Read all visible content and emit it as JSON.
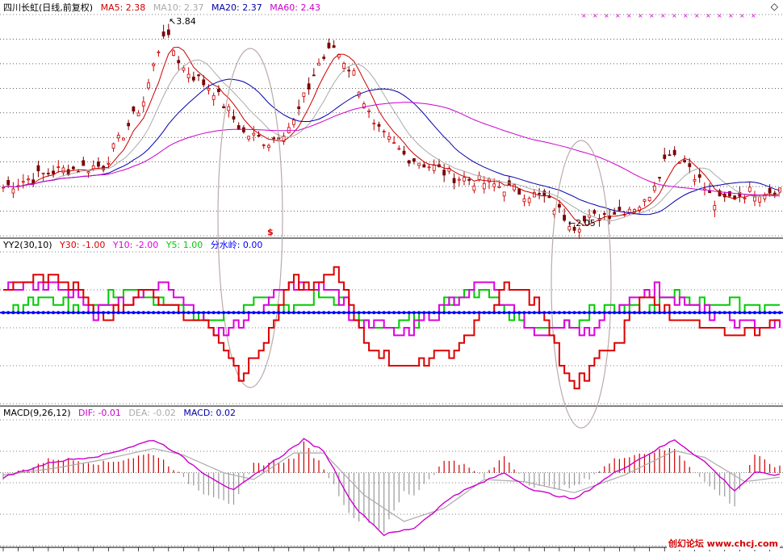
{
  "stock_title": "四川长虹(日线,前复权)",
  "main_panel": {
    "indicators": [
      {
        "label": "MA5: 2.38",
        "color": "#cc0000"
      },
      {
        "label": "MA10: 2.37",
        "color": "#aaaaaa"
      },
      {
        "label": "MA20: 2.37",
        "color": "#0000aa"
      },
      {
        "label": "MA60: 2.43",
        "color": "#cc00cc"
      }
    ],
    "high_annotation": "3.84",
    "low_annotation": "2.05",
    "signal_marker": "$",
    "corner_icon": "diamond-icon"
  },
  "yy2_panel": {
    "title": "YY2(30,10)",
    "indicators": [
      {
        "label": "Y30: -1.00",
        "color": "#dd0000"
      },
      {
        "label": "Y10: -2.00",
        "color": "#dd00dd"
      },
      {
        "label": "Y5: 1.00",
        "color": "#00cc00"
      },
      {
        "label": "分水岭: 0.00",
        "color": "#0000ff"
      }
    ]
  },
  "macd_panel": {
    "title": "MACD(9,26,12)",
    "indicators": [
      {
        "label": "DIF: -0.01",
        "color": "#cc00cc"
      },
      {
        "label": "DEA: -0.02",
        "color": "#aaaaaa"
      },
      {
        "label": "MACD: 0.02",
        "color": "#0000aa"
      }
    ]
  },
  "watermark": "创幻论坛 www.chcj.com",
  "chart_data": {
    "type": "line",
    "price_keypoints": [
      [
        0,
        2.4
      ],
      [
        10,
        2.55
      ],
      [
        20,
        2.6
      ],
      [
        28,
        3.2
      ],
      [
        32,
        3.84
      ],
      [
        36,
        3.5
      ],
      [
        42,
        3.3
      ],
      [
        48,
        2.9
      ],
      [
        53,
        2.82
      ],
      [
        58,
        3.0
      ],
      [
        63,
        3.55
      ],
      [
        66,
        3.7
      ],
      [
        70,
        3.45
      ],
      [
        74,
        2.95
      ],
      [
        80,
        2.7
      ],
      [
        90,
        2.5
      ],
      [
        100,
        2.4
      ],
      [
        108,
        2.3
      ],
      [
        114,
        2.05
      ],
      [
        120,
        2.15
      ],
      [
        128,
        2.25
      ],
      [
        133,
        2.75
      ],
      [
        137,
        2.6
      ],
      [
        142,
        2.25
      ],
      [
        148,
        2.35
      ],
      [
        155,
        2.38
      ]
    ],
    "price_range": [
      1.95,
      4.0
    ],
    "yy2_keypoints": {
      "Y30": [
        [
          0,
          3
        ],
        [
          9,
          5
        ],
        [
          14,
          3
        ],
        [
          20,
          -1
        ],
        [
          28,
          3
        ],
        [
          36,
          0
        ],
        [
          42,
          -2
        ],
        [
          47,
          -8
        ],
        [
          52,
          -4
        ],
        [
          57,
          4
        ],
        [
          62,
          3
        ],
        [
          66,
          6
        ],
        [
          70,
          -1
        ],
        [
          74,
          -5
        ],
        [
          80,
          -7
        ],
        [
          90,
          -5
        ],
        [
          100,
          3
        ],
        [
          106,
          2
        ],
        [
          110,
          -5
        ],
        [
          114,
          -10
        ],
        [
          118,
          -6
        ],
        [
          122,
          -4
        ],
        [
          128,
          3
        ],
        [
          133,
          -1
        ],
        [
          140,
          -2
        ],
        [
          145,
          -3
        ],
        [
          155,
          -1
        ]
      ],
      "Y10": [
        [
          0,
          3
        ],
        [
          10,
          4
        ],
        [
          18,
          0
        ],
        [
          26,
          2
        ],
        [
          32,
          4
        ],
        [
          36,
          1
        ],
        [
          42,
          -3
        ],
        [
          48,
          -1
        ],
        [
          55,
          3
        ],
        [
          60,
          4
        ],
        [
          66,
          3
        ],
        [
          70,
          -1
        ],
        [
          75,
          -2
        ],
        [
          80,
          -3
        ],
        [
          90,
          2
        ],
        [
          96,
          4
        ],
        [
          100,
          1
        ],
        [
          106,
          -3
        ],
        [
          110,
          -2
        ],
        [
          118,
          -2
        ],
        [
          124,
          2
        ],
        [
          130,
          3
        ],
        [
          136,
          1
        ],
        [
          140,
          0
        ],
        [
          146,
          -1
        ],
        [
          155,
          -2
        ]
      ],
      "Y5": [
        [
          0,
          0
        ],
        [
          8,
          2
        ],
        [
          16,
          0
        ],
        [
          24,
          3
        ],
        [
          32,
          1
        ],
        [
          36,
          0
        ],
        [
          42,
          -1
        ],
        [
          50,
          2
        ],
        [
          56,
          0
        ],
        [
          62,
          2
        ],
        [
          68,
          1
        ],
        [
          74,
          -2
        ],
        [
          82,
          -1
        ],
        [
          90,
          2
        ],
        [
          96,
          3
        ],
        [
          100,
          0
        ],
        [
          106,
          -2
        ],
        [
          114,
          -1
        ],
        [
          120,
          1
        ],
        [
          128,
          0
        ],
        [
          134,
          2
        ],
        [
          140,
          1
        ],
        [
          146,
          1
        ],
        [
          155,
          1
        ]
      ],
      "watershed": 0
    },
    "yy2_range": [
      -12,
      8
    ],
    "macd_keypoints": {
      "DIF": [
        [
          0,
          -0.02
        ],
        [
          10,
          0.05
        ],
        [
          20,
          0.08
        ],
        [
          30,
          0.15
        ],
        [
          34,
          0.1
        ],
        [
          40,
          0.0
        ],
        [
          46,
          -0.08
        ],
        [
          52,
          0.02
        ],
        [
          60,
          0.15
        ],
        [
          64,
          0.1
        ],
        [
          70,
          -0.15
        ],
        [
          76,
          -0.28
        ],
        [
          82,
          -0.25
        ],
        [
          90,
          -0.1
        ],
        [
          100,
          0.0
        ],
        [
          106,
          -0.08
        ],
        [
          114,
          -0.12
        ],
        [
          122,
          0.0
        ],
        [
          134,
          0.15
        ],
        [
          140,
          0.05
        ],
        [
          146,
          -0.08
        ],
        [
          150,
          0.0
        ],
        [
          155,
          -0.01
        ]
      ],
      "DEA": [
        [
          0,
          -0.01
        ],
        [
          10,
          0.02
        ],
        [
          20,
          0.06
        ],
        [
          30,
          0.11
        ],
        [
          36,
          0.08
        ],
        [
          44,
          0.0
        ],
        [
          50,
          -0.03
        ],
        [
          58,
          0.09
        ],
        [
          64,
          0.09
        ],
        [
          72,
          -0.1
        ],
        [
          80,
          -0.22
        ],
        [
          88,
          -0.16
        ],
        [
          96,
          -0.03
        ],
        [
          104,
          -0.04
        ],
        [
          114,
          -0.09
        ],
        [
          124,
          -0.01
        ],
        [
          134,
          0.1
        ],
        [
          140,
          0.07
        ],
        [
          148,
          -0.04
        ],
        [
          155,
          -0.02
        ]
      ]
    },
    "macd_range": [
      -0.33,
      0.24
    ],
    "series": [
      {
        "name": "MA5",
        "color": "#cc0000"
      },
      {
        "name": "MA10",
        "color": "#aaaaaa"
      },
      {
        "name": "MA20",
        "color": "#0000aa"
      },
      {
        "name": "MA60",
        "color": "#cc00cc"
      },
      {
        "name": "Y30",
        "color": "#dd0000"
      },
      {
        "name": "Y10",
        "color": "#dd00dd"
      },
      {
        "name": "Y5",
        "color": "#00cc00"
      },
      {
        "name": "分水岭",
        "color": "#0000ff"
      },
      {
        "name": "DIF",
        "color": "#cc00cc"
      },
      {
        "name": "DEA",
        "color": "#aaaaaa"
      },
      {
        "name": "MACD",
        "color": "#0000aa"
      }
    ],
    "n_bars": 156,
    "grid": true
  }
}
